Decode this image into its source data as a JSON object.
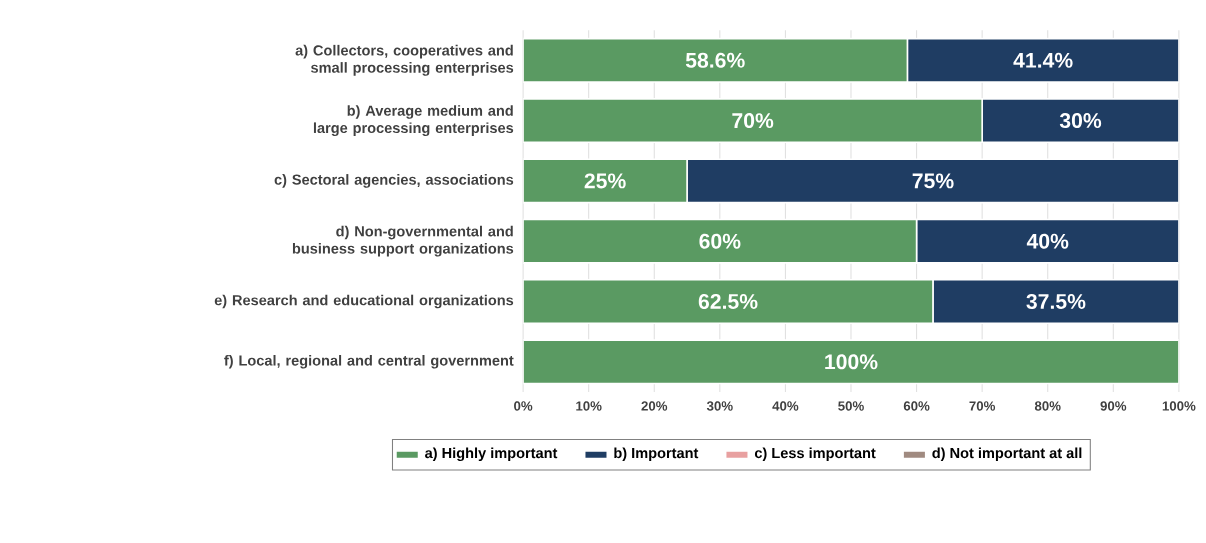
{
  "chart_data": {
    "type": "bar",
    "orientation": "horizontal",
    "stacked": true,
    "categories": [
      "a) Collectors, cooperatives and small processing enterprises",
      "b) Average medium and large processing enterprises",
      "c) Sectoral agencies, associations",
      "d) Non-governmental and business support organizations",
      "e) Research and educational organizations",
      "f) Local, regional and central government"
    ],
    "series": [
      {
        "name": "a) Highly important",
        "color": "#5a9a62",
        "values": [
          58.6,
          70,
          25,
          60,
          62.5,
          100
        ],
        "value_labels": [
          "58.6%",
          "70%",
          "25%",
          "60%",
          "62.5%",
          "100%"
        ]
      },
      {
        "name": "b) Important",
        "color": "#1f3d63",
        "values": [
          41.4,
          30,
          75,
          40,
          37.5,
          0
        ],
        "value_labels": [
          "41.4%",
          "30%",
          "75%",
          "40%",
          "37.5%",
          null
        ]
      },
      {
        "name": "c) Less important",
        "color": "#e8a0a0",
        "values": [
          0,
          0,
          0,
          0,
          0,
          0
        ],
        "value_labels": [
          null,
          null,
          null,
          null,
          null,
          null
        ]
      },
      {
        "name": "d) Not important at all",
        "color": "#a08a80",
        "values": [
          0,
          0,
          0,
          0,
          0,
          0
        ],
        "value_labels": [
          null,
          null,
          null,
          null,
          null,
          null
        ]
      }
    ],
    "xlim": [
      0,
      100
    ],
    "xticks": [
      {
        "value": 0,
        "label": "0%"
      },
      {
        "value": 10,
        "label": "10%"
      },
      {
        "value": 20,
        "label": "20%"
      },
      {
        "value": 30,
        "label": "30%"
      },
      {
        "value": 40,
        "label": "40%"
      },
      {
        "value": 50,
        "label": "50%"
      },
      {
        "value": 60,
        "label": "60%"
      },
      {
        "value": 70,
        "label": "70%"
      },
      {
        "value": 80,
        "label": "80%"
      },
      {
        "value": 90,
        "label": "90%"
      },
      {
        "value": 100,
        "label": "100%"
      }
    ],
    "grid": "x",
    "legend": "bottom"
  }
}
